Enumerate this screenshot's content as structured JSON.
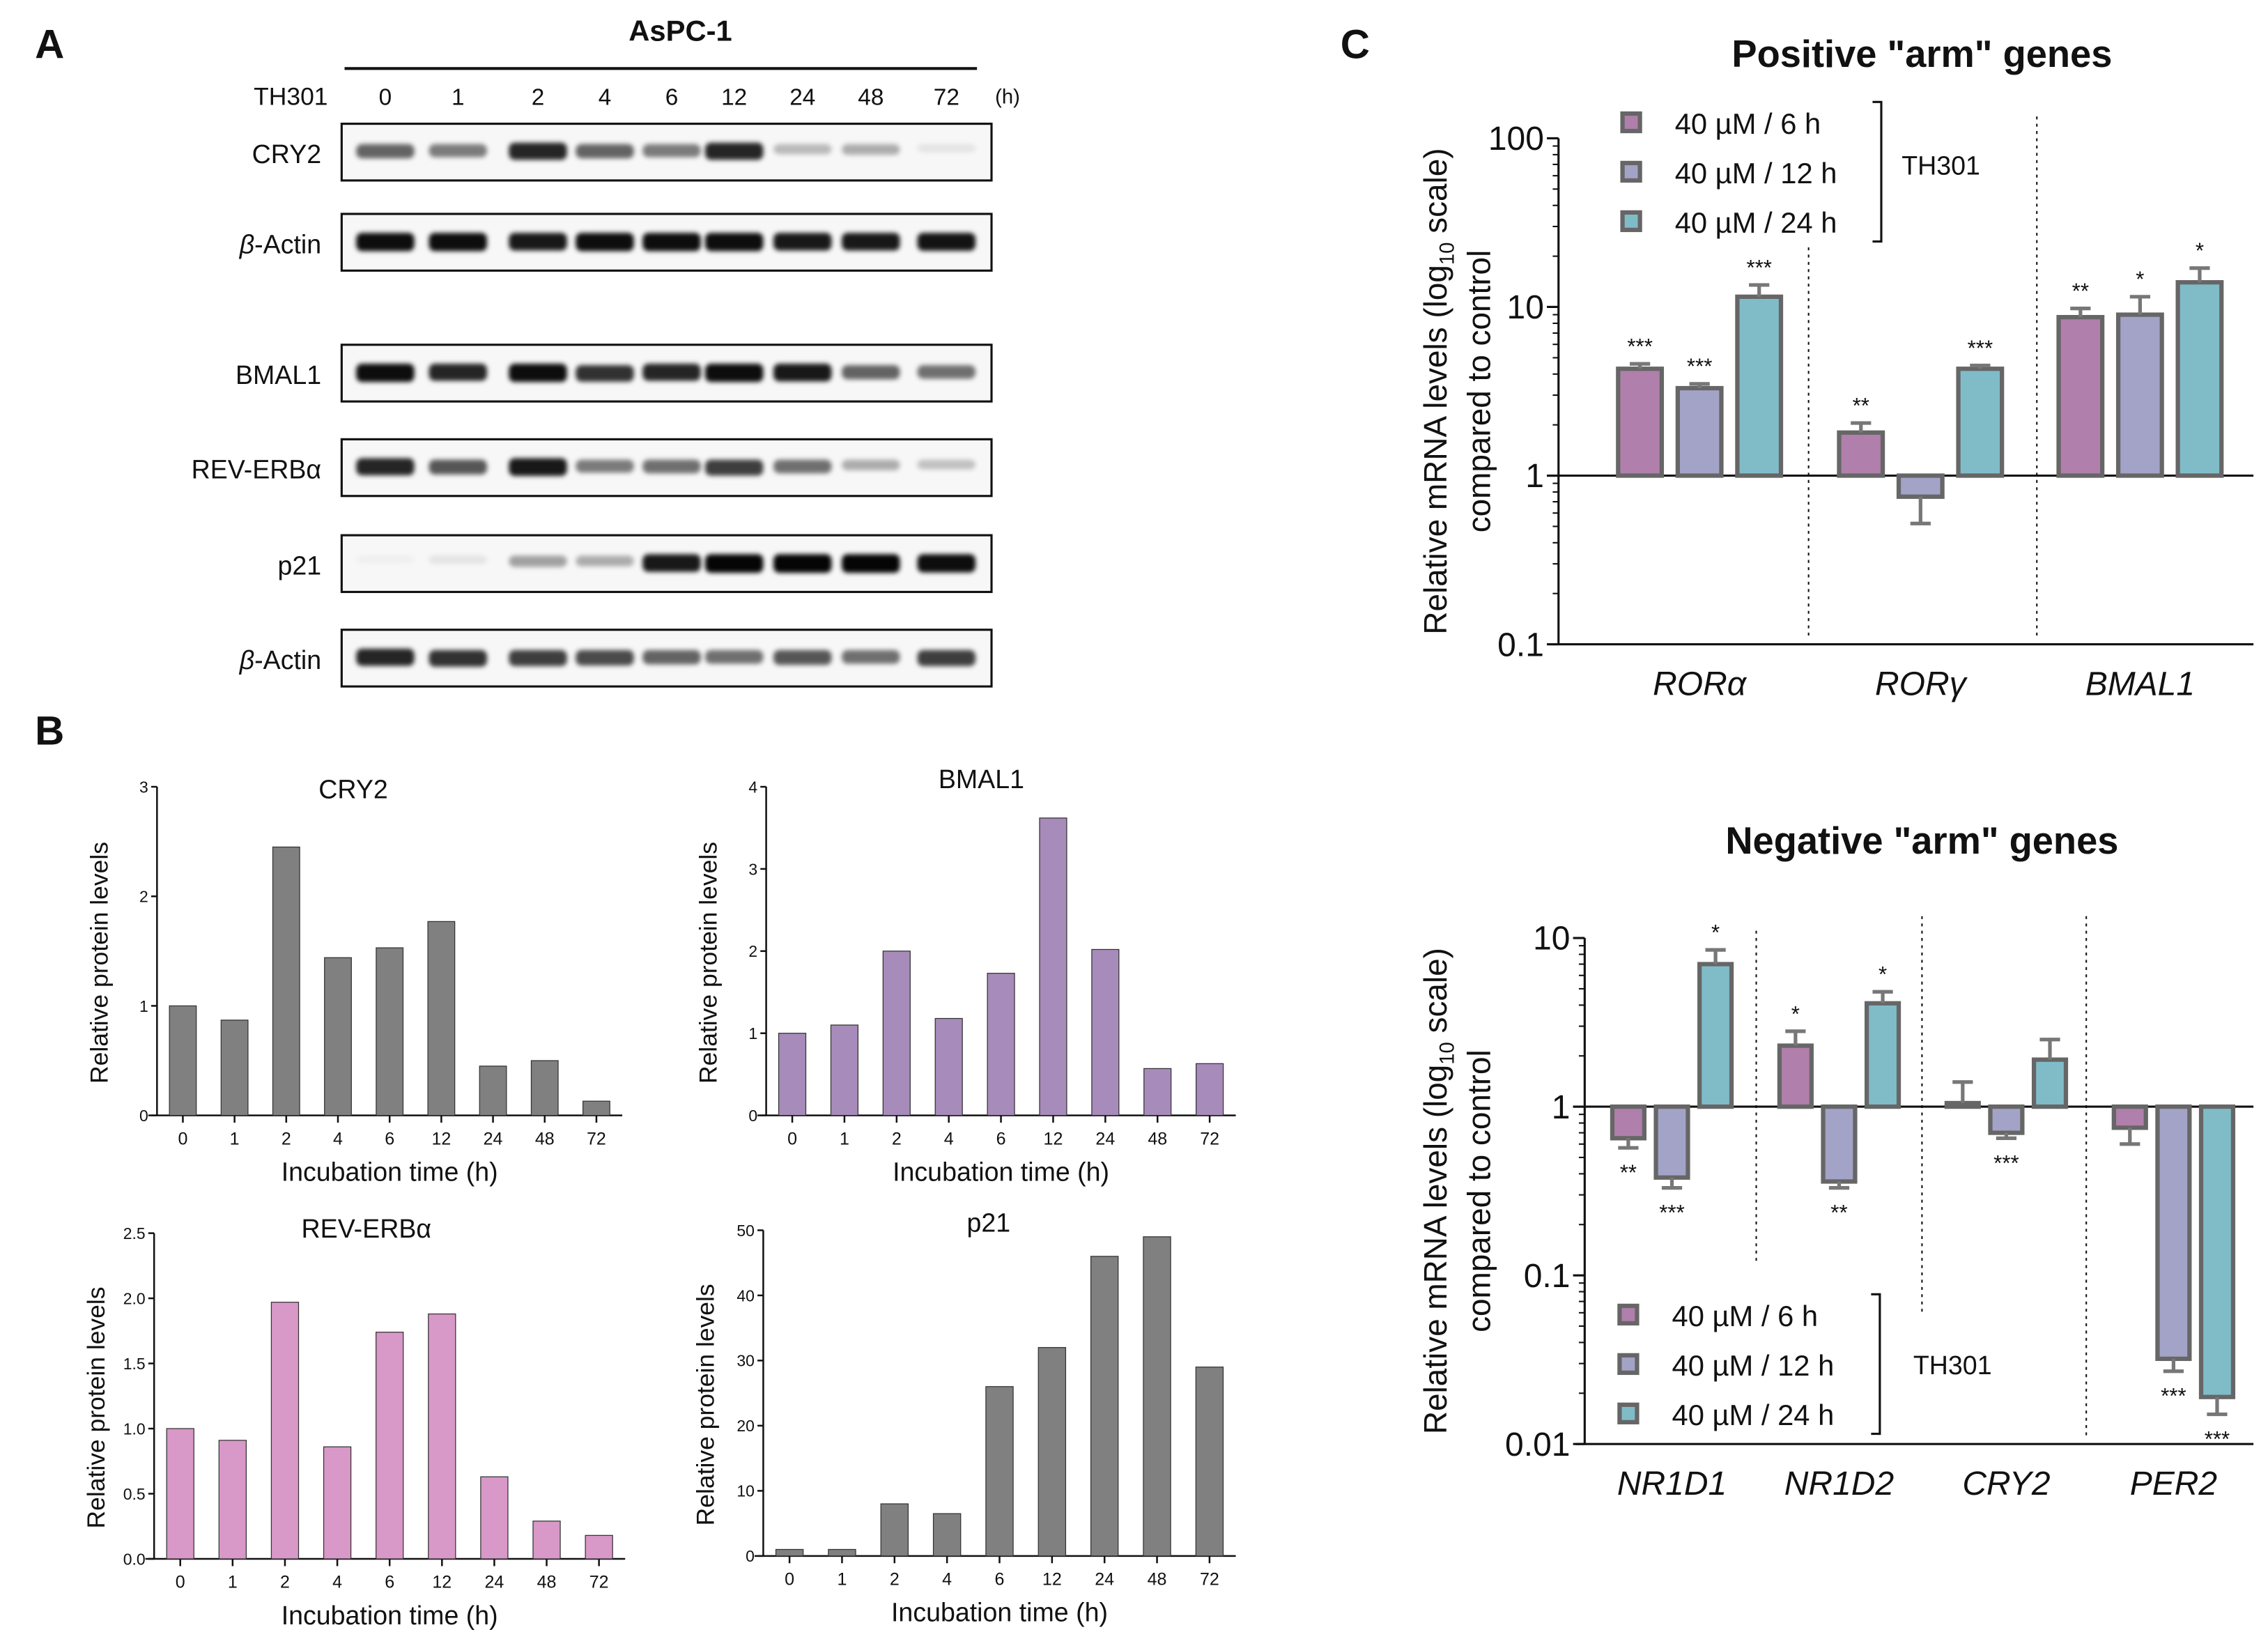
{
  "panels": {
    "a": "A",
    "b": "B",
    "c": "C"
  },
  "western": {
    "cell_line": "AsPC-1",
    "treatment_label": "TH301",
    "time_unit": "(h)",
    "lanes": [
      "0",
      "1",
      "2",
      "4",
      "6",
      "12",
      "24",
      "48",
      "72"
    ],
    "blots": [
      {
        "label": "CRY2",
        "italic_prefix": "",
        "band_intensity": [
          0.6,
          0.5,
          0.85,
          0.6,
          0.5,
          0.85,
          0.25,
          0.3,
          0.08
        ]
      },
      {
        "label": "-Actin",
        "italic_prefix": "β",
        "band_intensity": [
          0.95,
          0.95,
          0.9,
          0.95,
          0.95,
          0.95,
          0.9,
          0.9,
          0.92
        ]
      },
      {
        "label": "BMAL1",
        "italic_prefix": "",
        "band_intensity": [
          0.95,
          0.85,
          0.95,
          0.8,
          0.85,
          0.95,
          0.9,
          0.6,
          0.55
        ]
      },
      {
        "label": "REV-ERBα",
        "italic_prefix": "",
        "band_intensity": [
          0.85,
          0.65,
          0.9,
          0.5,
          0.55,
          0.75,
          0.55,
          0.3,
          0.22
        ]
      },
      {
        "label": "p21",
        "italic_prefix": "",
        "band_intensity": [
          0.03,
          0.08,
          0.35,
          0.3,
          0.9,
          0.98,
          0.98,
          0.98,
          0.95
        ]
      },
      {
        "label": "-Actin",
        "italic_prefix": "β",
        "band_intensity": [
          0.85,
          0.8,
          0.75,
          0.7,
          0.6,
          0.55,
          0.65,
          0.55,
          0.75
        ]
      }
    ]
  },
  "chart_data": [
    {
      "type": "bar",
      "title": "CRY2",
      "xlabel": "Incubation time (h)",
      "ylabel": "Relative protein levels",
      "categories": [
        "0",
        "1",
        "2",
        "4",
        "6",
        "12",
        "24",
        "48",
        "72"
      ],
      "values": [
        1.0,
        0.87,
        2.45,
        1.44,
        1.53,
        1.77,
        0.45,
        0.5,
        0.13
      ],
      "ylim": [
        0,
        3
      ],
      "yticks": [
        "0",
        "1",
        "2",
        "3"
      ],
      "color": "#808080"
    },
    {
      "type": "bar",
      "title": "BMAL1",
      "xlabel": "Incubation time (h)",
      "ylabel": "Relative protein levels",
      "categories": [
        "0",
        "1",
        "2",
        "4",
        "6",
        "12",
        "24",
        "48",
        "72"
      ],
      "values": [
        1.0,
        1.1,
        2.0,
        1.18,
        1.73,
        3.62,
        2.02,
        0.57,
        0.63
      ],
      "ylim": [
        0,
        4
      ],
      "yticks": [
        "0",
        "1",
        "2",
        "3",
        "4"
      ],
      "color": "#a78bba"
    },
    {
      "type": "bar",
      "title": "REV-ERBα",
      "xlabel": "Incubation time (h)",
      "ylabel": "Relative protein levels",
      "categories": [
        "0",
        "1",
        "2",
        "4",
        "6",
        "12",
        "24",
        "48",
        "72"
      ],
      "values": [
        1.0,
        0.91,
        1.97,
        0.86,
        1.74,
        1.88,
        0.63,
        0.29,
        0.18
      ],
      "ylim": [
        0,
        2.5
      ],
      "yticks": [
        "0.0",
        "0.5",
        "1.0",
        "1.5",
        "2.0",
        "2.5"
      ],
      "color": "#d898c8"
    },
    {
      "type": "bar",
      "title": "p21",
      "xlabel": "Incubation time (h)",
      "ylabel": "Relative protein levels",
      "categories": [
        "0",
        "1",
        "2",
        "4",
        "6",
        "12",
        "24",
        "48",
        "72"
      ],
      "values": [
        1,
        1,
        8,
        6.5,
        26,
        32,
        46,
        49,
        29
      ],
      "ylim": [
        0,
        50
      ],
      "yticks": [
        "0",
        "10",
        "20",
        "30",
        "40",
        "50"
      ],
      "color": "#808080"
    },
    {
      "type": "bar",
      "title": "Positive \"arm\" genes",
      "scale": "log",
      "ylabel_pre": "Relative mRNA levels (log",
      "ylabel_sub": "10",
      "ylabel_post": " scale)",
      "ylabel_line2": "compared to control",
      "categories": [
        "RORα",
        "RORγ",
        "BMAL1"
      ],
      "ylim": [
        0.1,
        100
      ],
      "yticks": [
        "0.1",
        "1",
        "10",
        "100"
      ],
      "legend_group": "TH301",
      "legend_position": "top-left",
      "series": [
        {
          "name": "40 µM / 6 h",
          "color": "#b07fab",
          "values": [
            4.3,
            1.8,
            8.7
          ],
          "error": [
            4.6,
            2.05,
            9.8
          ],
          "significance": [
            "***",
            "**",
            "**"
          ]
        },
        {
          "name": "40 µM / 12 h",
          "color": "#a3a3c8",
          "values": [
            3.3,
            0.75,
            9.0
          ],
          "error": [
            3.5,
            0.52,
            11.5
          ],
          "significance": [
            "***",
            "",
            "*"
          ]
        },
        {
          "name": "40 µM / 24 h",
          "color": "#80bcc8",
          "values": [
            11.5,
            4.3,
            14.0
          ],
          "error": [
            13.5,
            4.5,
            17.0
          ],
          "significance": [
            "***",
            "***",
            "*"
          ]
        }
      ]
    },
    {
      "type": "bar",
      "title": "Negative \"arm\" genes",
      "scale": "log",
      "ylabel_pre": "Relative mRNA levels (log",
      "ylabel_sub": "10",
      "ylabel_post": " scale)",
      "ylabel_line2": "compared to control",
      "categories": [
        "NR1D1",
        "NR1D2",
        "CRY2",
        "PER2"
      ],
      "ylim": [
        0.01,
        10
      ],
      "yticks": [
        "0.01",
        "0.1",
        "1",
        "10"
      ],
      "legend_group": "TH301",
      "legend_position": "bottom-left",
      "series": [
        {
          "name": "40 µM / 6 h",
          "color": "#b07fab",
          "values": [
            0.65,
            2.3,
            1.05,
            0.75
          ],
          "error": [
            0.57,
            2.8,
            1.4,
            0.6
          ],
          "significance": [
            "**",
            "*",
            "",
            ""
          ]
        },
        {
          "name": "40 µM / 12 h",
          "color": "#a3a3c8",
          "values": [
            0.38,
            0.36,
            0.7,
            0.032
          ],
          "error": [
            0.33,
            0.33,
            0.65,
            0.027
          ],
          "significance": [
            "***",
            "**",
            "***",
            "***"
          ]
        },
        {
          "name": "40 µM / 24 h",
          "color": "#80bcc8",
          "values": [
            7.0,
            4.1,
            1.9,
            0.019
          ],
          "error": [
            8.5,
            4.8,
            2.5,
            0.015
          ],
          "significance": [
            "*",
            "*",
            "",
            "***"
          ]
        }
      ]
    }
  ]
}
